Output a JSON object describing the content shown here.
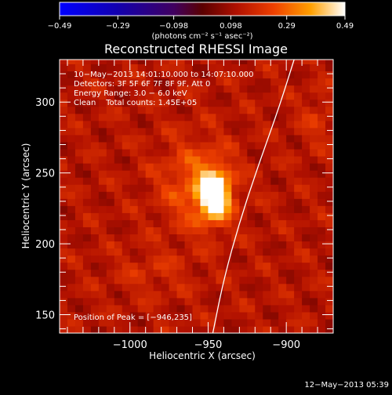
{
  "chart_data": {
    "type": "heatmap",
    "title": "Reconstructed RHESSI Image",
    "xlabel": "Heliocentric X (arcsec)",
    "ylabel": "Heliocentric Y (arcsec)",
    "xlim": [
      -1045,
      -870
    ],
    "ylim": [
      137,
      330
    ],
    "x_ticks": [
      {
        "value": -1000,
        "label": "−1000"
      },
      {
        "value": -950,
        "label": "−950"
      },
      {
        "value": -900,
        "label": "−900"
      }
    ],
    "y_ticks": [
      {
        "value": 150,
        "label": "150"
      },
      {
        "value": 200,
        "label": "200"
      },
      {
        "value": 250,
        "label": "250"
      },
      {
        "value": 300,
        "label": "300"
      }
    ],
    "colorbar": {
      "min": -0.49,
      "max": 0.49,
      "ticks": [
        {
          "value": -0.49,
          "label": "−0.49"
        },
        {
          "value": -0.29,
          "label": "−0.29"
        },
        {
          "value": -0.098,
          "label": "−0.098"
        },
        {
          "value": 0.098,
          "label": "0.098"
        },
        {
          "value": 0.29,
          "label": "0.29"
        },
        {
          "value": 0.49,
          "label": "0.49"
        }
      ],
      "unit_label": "(photons cm⁻² s⁻¹ asec⁻²)"
    },
    "annotations": {
      "time_range": "10−May−2013 14:01:10.000 to 14:07:10.000",
      "detectors": "Detectors: 3F 5F 6F 7F 8F 9F, Att 0",
      "energy_range": "Energy Range: 3.0 − 6.0 keV",
      "clean_counts": "Clean    Total counts: 1.45E+05",
      "peak_position": "Position of Peak = [−946,235]"
    },
    "peak": {
      "x": -946,
      "y": 235
    },
    "limb_points": [
      {
        "x": -947,
        "y": 137
      },
      {
        "x": -940,
        "y": 175
      },
      {
        "x": -930,
        "y": 215
      },
      {
        "x": -918,
        "y": 255
      },
      {
        "x": -905,
        "y": 295
      },
      {
        "x": -895,
        "y": 330
      }
    ],
    "sources": [
      {
        "x": -946,
        "y": 235,
        "amplitude": 0.44,
        "sigma_x": 7,
        "sigma_y": 12
      },
      {
        "x": -958,
        "y": 242,
        "amplitude": 0.14,
        "sigma_x": 16,
        "sigma_y": 22
      },
      {
        "x": -880,
        "y": 288,
        "amplitude": 0.06,
        "sigma_x": 8,
        "sigma_y": 14
      },
      {
        "x": -985,
        "y": 180,
        "amplitude": 0.05,
        "sigma_x": 18,
        "sigma_y": 12
      }
    ],
    "background_level": 0.13
  },
  "footer": {
    "timestamp": "12−May−2013 05:39"
  }
}
